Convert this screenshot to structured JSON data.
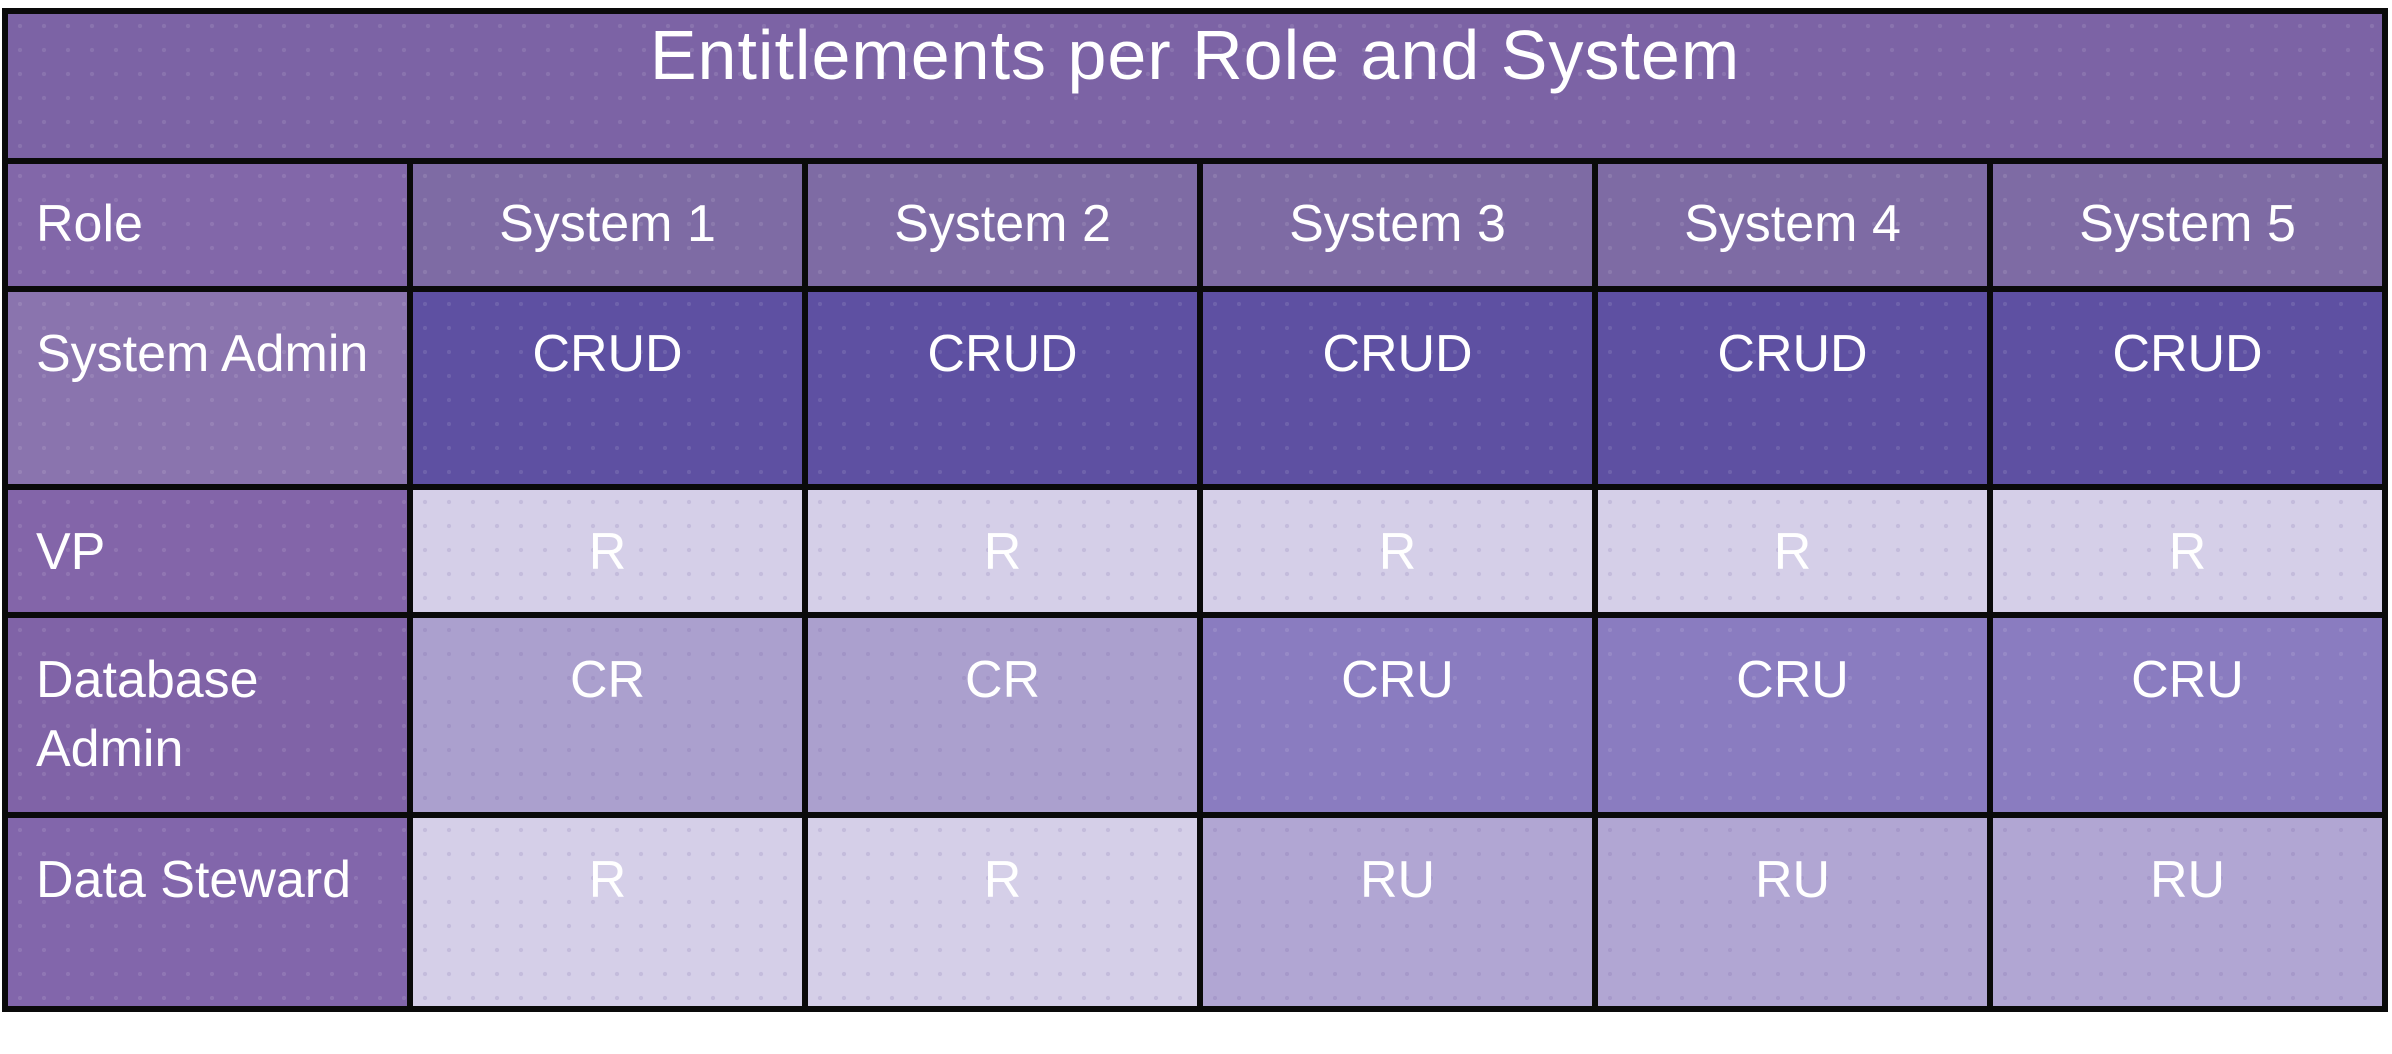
{
  "title": "Entitlements per Role and System",
  "table": {
    "columns": [
      "Role",
      "System 1",
      "System 2",
      "System 3",
      "System 4",
      "System 5"
    ],
    "rows": [
      {
        "role": "System Admin",
        "entitlements": [
          "CRUD",
          "CRUD",
          "CRUD",
          "CRUD",
          "CRUD"
        ],
        "shades": [
          "crud",
          "crud",
          "crud",
          "crud",
          "crud"
        ]
      },
      {
        "role": "VP",
        "entitlements": [
          "R",
          "R",
          "R",
          "R",
          "R"
        ],
        "shades": [
          "r",
          "r",
          "r",
          "r",
          "r"
        ]
      },
      {
        "role": "Database Admin",
        "entitlements": [
          "CR",
          "CR",
          "CRU",
          "CRU",
          "CRU"
        ],
        "shades": [
          "cr",
          "cr",
          "cru",
          "cru",
          "cru"
        ]
      },
      {
        "role": "Data Steward",
        "entitlements": [
          "R",
          "R",
          "RU",
          "RU",
          "RU"
        ],
        "shades": [
          "r",
          "r",
          "ru",
          "ru",
          "ru"
        ]
      }
    ]
  },
  "colors": {
    "page_background": "#ffffff",
    "grid_border": "#0a0a0a",
    "title_bg": "#7c63a5",
    "header_bg": "#7e6ba4",
    "role_header_bg": "#8267a9",
    "role_bg_1": "#8a74ae",
    "role_bg_2": "#8365a9",
    "role_bg_3": "#8063a7",
    "role_bg_4": "#8266ab",
    "crud_bg": "#5e50a2",
    "r_bg": "#d5cfe8",
    "cr_bg": "#aba0ce",
    "cru_bg": "#8a7cc0",
    "ru_bg": "#b1a6d3",
    "text": "#ffffff"
  }
}
